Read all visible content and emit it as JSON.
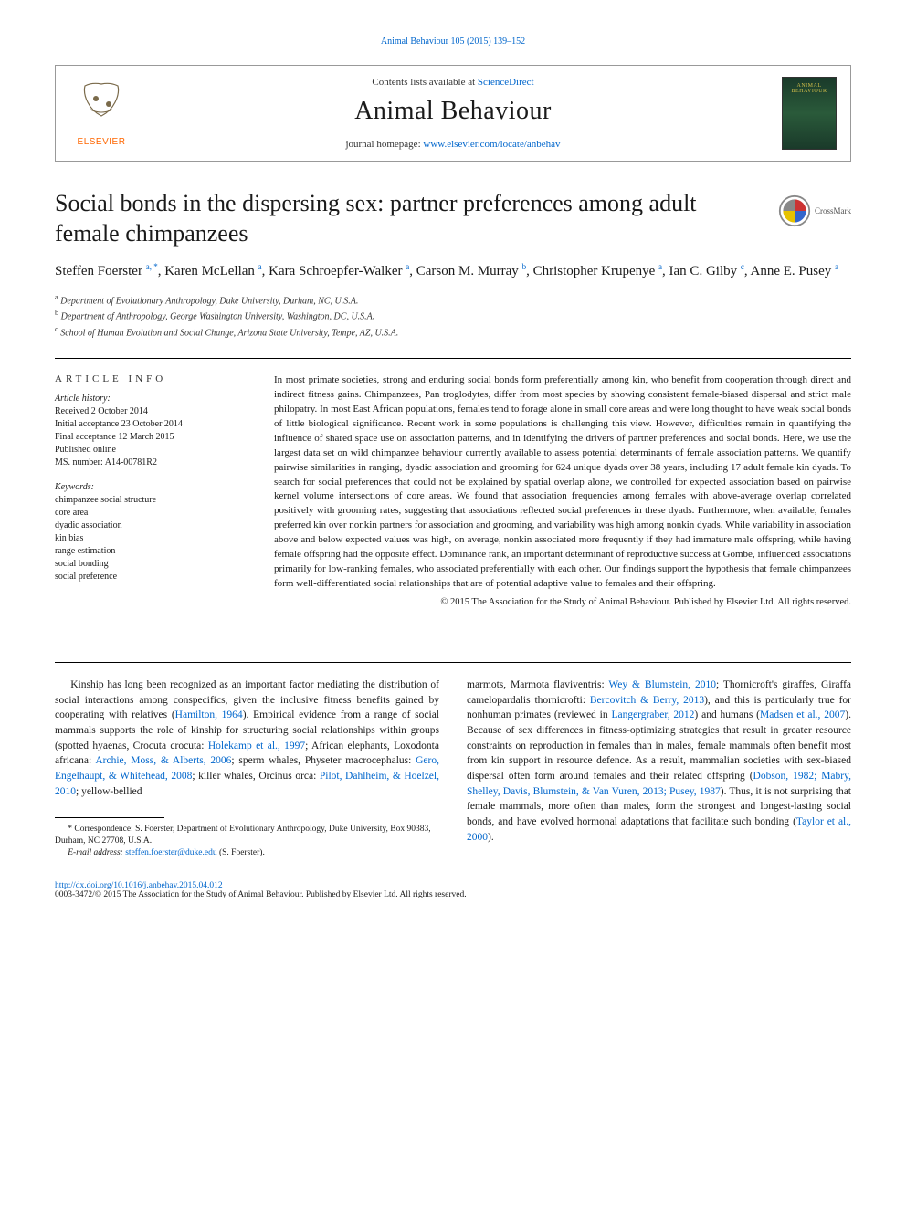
{
  "header_link": "Animal Behaviour 105 (2015) 139–152",
  "banner": {
    "contents_text": "Contents lists available at ",
    "contents_link": "ScienceDirect",
    "journal_name": "Animal Behaviour",
    "homepage_label": "journal homepage: ",
    "homepage_url": "www.elsevier.com/locate/anbehav",
    "elsevier_label": "ELSEVIER",
    "cover_label": "ANIMAL BEHAVIOUR"
  },
  "crossmark_label": "CrossMark",
  "title": "Social bonds in the dispersing sex: partner preferences among adult female chimpanzees",
  "authors_html": "Steffen Foerster <sup>a, *</sup>, Karen McLellan <sup>a</sup>, Kara Schroepfer-Walker <sup>a</sup>, Carson M. Murray <sup>b</sup>, Christopher Krupenye <sup>a</sup>, Ian C. Gilby <sup>c</sup>, Anne E. Pusey <sup>a</sup>",
  "affiliations": [
    {
      "sup": "a",
      "text": "Department of Evolutionary Anthropology, Duke University, Durham, NC, U.S.A."
    },
    {
      "sup": "b",
      "text": "Department of Anthropology, George Washington University, Washington, DC, U.S.A."
    },
    {
      "sup": "c",
      "text": "School of Human Evolution and Social Change, Arizona State University, Tempe, AZ, U.S.A."
    }
  ],
  "info": {
    "heading": "ARTICLE INFO",
    "history_label": "Article history:",
    "history": [
      "Received 2 October 2014",
      "Initial acceptance 23 October 2014",
      "Final acceptance 12 March 2015",
      "Published online",
      "MS. number: A14-00781R2"
    ],
    "keywords_label": "Keywords:",
    "keywords": [
      "chimpanzee social structure",
      "core area",
      "dyadic association",
      "kin bias",
      "range estimation",
      "social bonding",
      "social preference"
    ]
  },
  "abstract": "In most primate societies, strong and enduring social bonds form preferentially among kin, who benefit from cooperation through direct and indirect fitness gains. Chimpanzees, Pan troglodytes, differ from most species by showing consistent female-biased dispersal and strict male philopatry. In most East African populations, females tend to forage alone in small core areas and were long thought to have weak social bonds of little biological significance. Recent work in some populations is challenging this view. However, difficulties remain in quantifying the influence of shared space use on association patterns, and in identifying the drivers of partner preferences and social bonds. Here, we use the largest data set on wild chimpanzee behaviour currently available to assess potential determinants of female association patterns. We quantify pairwise similarities in ranging, dyadic association and grooming for 624 unique dyads over 38 years, including 17 adult female kin dyads. To search for social preferences that could not be explained by spatial overlap alone, we controlled for expected association based on pairwise kernel volume intersections of core areas. We found that association frequencies among females with above-average overlap correlated positively with grooming rates, suggesting that associations reflected social preferences in these dyads. Furthermore, when available, females preferred kin over nonkin partners for association and grooming, and variability was high among nonkin dyads. While variability in association above and below expected values was high, on average, nonkin associated more frequently if they had immature male offspring, while having female offspring had the opposite effect. Dominance rank, an important determinant of reproductive success at Gombe, influenced associations primarily for low-ranking females, who associated preferentially with each other. Our findings support the hypothesis that female chimpanzees form well-differentiated social relationships that are of potential adaptive value to females and their offspring.",
  "copyright": "© 2015 The Association for the Study of Animal Behaviour. Published by Elsevier Ltd. All rights reserved.",
  "body": {
    "col1_p1_pre": "Kinship has long been recognized as an important factor mediating the distribution of social interactions among conspecifics, given the inclusive fitness benefits gained by cooperating with relatives (",
    "col1_ref1": "Hamilton, 1964",
    "col1_p1_mid1": "). Empirical evidence from a range of social mammals supports the role of kinship for structuring social relationships within groups (spotted hyaenas, Crocuta crocuta: ",
    "col1_ref2": "Holekamp et al., 1997",
    "col1_p1_mid2": "; African elephants, Loxodonta africana: ",
    "col1_ref3": "Archie, Moss, & Alberts, 2006",
    "col1_p1_mid3": "; sperm whales, Physeter macrocephalus: ",
    "col1_ref4": "Gero, Engelhaupt, & Whitehead, 2008",
    "col1_p1_mid4": "; killer whales, Orcinus orca: ",
    "col1_ref5": "Pilot, Dahlheim, & Hoelzel, 2010",
    "col1_p1_post": "; yellow-bellied",
    "col2_p1_pre": "marmots, Marmota flaviventris: ",
    "col2_ref1": "Wey & Blumstein, 2010",
    "col2_p1_mid1": "; Thornicroft's giraffes, Giraffa camelopardalis thornicrofti: ",
    "col2_ref2": "Bercovitch & Berry, 2013",
    "col2_p1_mid2": "), and this is particularly true for nonhuman primates (reviewed in ",
    "col2_ref3": "Langergraber, 2012",
    "col2_p1_mid3": ") and humans (",
    "col2_ref4": "Madsen et al., 2007",
    "col2_p1_mid4": "). Because of sex differences in fitness-optimizing strategies that result in greater resource constraints on reproduction in females than in males, female mammals often benefit most from kin support in resource defence. As a result, mammalian societies with sex-biased dispersal often form around females and their related offspring (",
    "col2_ref5": "Dobson, 1982; Mabry, Shelley, Davis, Blumstein, & Van Vuren, 2013; Pusey, 1987",
    "col2_p1_mid5": "). Thus, it is not surprising that female mammals, more often than males, form the strongest and longest-lasting social bonds, and have evolved hormonal adaptations that facilitate such bonding (",
    "col2_ref6": "Taylor et al., 2000",
    "col2_p1_post": ")."
  },
  "footnotes": {
    "corr": "* Correspondence: S. Foerster, Department of Evolutionary Anthropology, Duke University, Box 90383, Durham, NC 27708, U.S.A.",
    "email_label": "E-mail address: ",
    "email": "steffen.foerster@duke.edu",
    "email_who": " (S. Foerster)."
  },
  "footer": {
    "doi": "http://dx.doi.org/10.1016/j.anbehav.2015.04.012",
    "issn_line": "0003-3472/© 2015 The Association for the Study of Animal Behaviour. Published by Elsevier Ltd. All rights reserved."
  },
  "colors": {
    "link": "#0066cc",
    "text": "#1a1a1a",
    "elsevier_orange": "#ff6600",
    "crossmark_red": "#cc3333",
    "crossmark_yellow": "#e6c200",
    "crossmark_blue": "#3366cc",
    "crossmark_gray": "#888888"
  }
}
